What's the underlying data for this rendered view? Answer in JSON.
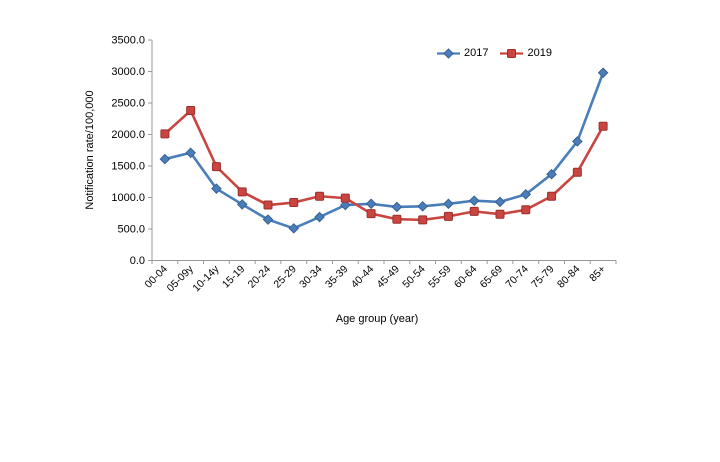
{
  "chart_data": {
    "type": "line",
    "title": "",
    "xlabel": "Age group (year)",
    "ylabel": "Notification rate/100,000",
    "categories": [
      "00-04",
      "05-09y",
      "10-14y",
      "15-19",
      "20-24",
      "25-29",
      "30-34",
      "35-39",
      "40-44",
      "45-49",
      "50-54",
      "55-59",
      "60-64",
      "65-69",
      "70-74",
      "75-79",
      "80-84",
      "85+"
    ],
    "series": [
      {
        "name": "2017",
        "marker": "diamond",
        "color": "#4a7ebb",
        "marker_stroke": "#38618f",
        "values": [
          1610,
          1710,
          1140,
          890,
          650,
          510,
          690,
          880,
          900,
          850,
          860,
          900,
          950,
          930,
          1050,
          1370,
          1890,
          2980
        ]
      },
      {
        "name": "2019",
        "marker": "square",
        "color": "#c9453f",
        "marker_stroke": "#9c2f2c",
        "values": [
          2010,
          2380,
          1490,
          1090,
          880,
          920,
          1020,
          990,
          745,
          655,
          645,
          700,
          780,
          735,
          805,
          1020,
          1400,
          2130
        ]
      }
    ],
    "ylim": [
      0,
      3500
    ],
    "ytick_step": 500,
    "ytick_labels": [
      "0.0",
      "500.0",
      "1000.0",
      "1500.0",
      "2000.0",
      "2500.0",
      "3000.0",
      "3500.0"
    ],
    "legend_position": "top-center-inside",
    "grid": false,
    "axis_color": "#9a9a9a"
  }
}
